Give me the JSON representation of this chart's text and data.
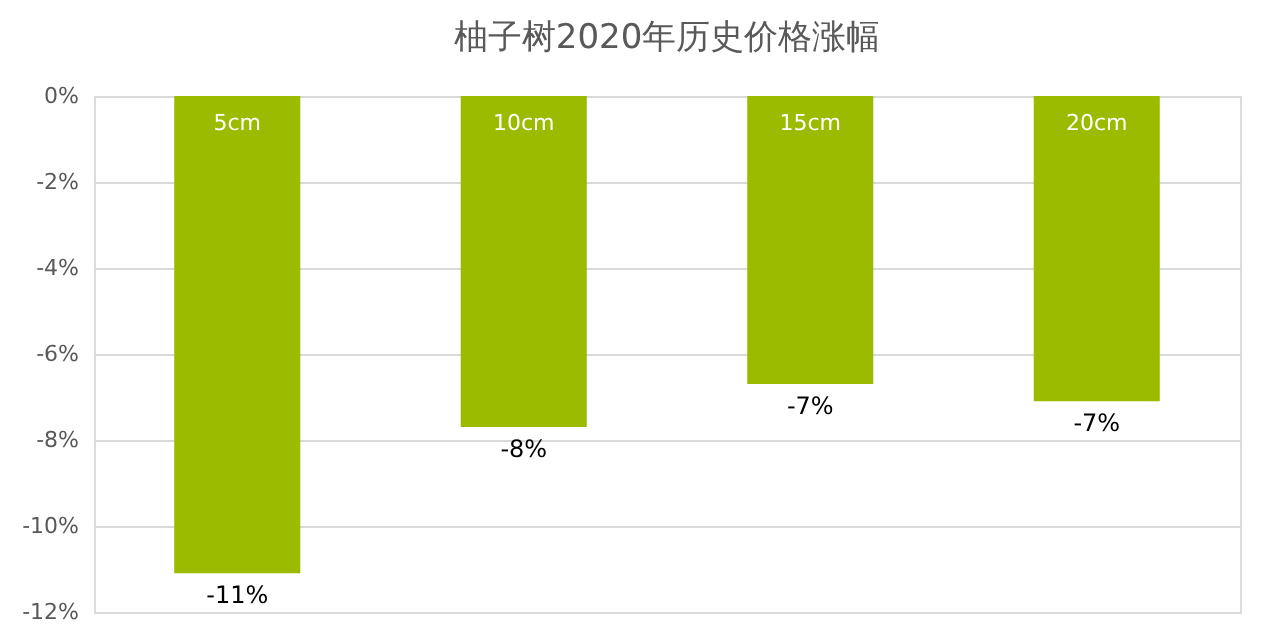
{
  "chart_data": {
    "type": "bar",
    "title": "柚子树2020年历史价格涨幅",
    "categories": [
      "5cm",
      "10cm",
      "15cm",
      "20cm"
    ],
    "values": [
      -11.1,
      -7.7,
      -6.7,
      -7.1
    ],
    "value_labels": [
      "-11%",
      "-8%",
      "-7%",
      "-7%"
    ],
    "color": "#9bbb00",
    "ylim": [
      -12,
      0
    ],
    "yticks": [
      {
        "value": 0,
        "label": "0%"
      },
      {
        "value": -2,
        "label": "-2%"
      },
      {
        "value": -4,
        "label": "-4%"
      },
      {
        "value": -6,
        "label": "-6%"
      },
      {
        "value": -8,
        "label": "-8%"
      },
      {
        "value": -10,
        "label": "-10%"
      },
      {
        "value": -12,
        "label": "-12%"
      }
    ],
    "grid": "y"
  }
}
